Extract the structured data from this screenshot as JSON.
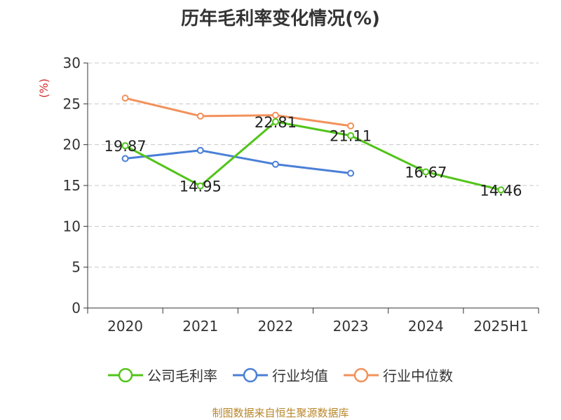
{
  "title": "历年毛利率变化情况(%)",
  "source": "制图数据来自恒生聚源数据库",
  "chart_data": {
    "type": "line",
    "title": "历年毛利率变化情况(%)",
    "ylabel": "(%)",
    "xlabel": "",
    "ylim": [
      0,
      30
    ],
    "yticks": [
      0,
      5,
      10,
      15,
      20,
      25,
      30
    ],
    "grid": true,
    "legend_position": "bottom",
    "categories": [
      "2020",
      "2021",
      "2022",
      "2023",
      "2024",
      "2025H1"
    ],
    "series": [
      {
        "name": "公司毛利率",
        "color": "#52c41a",
        "values": [
          19.87,
          14.95,
          22.81,
          21.11,
          16.67,
          14.46
        ],
        "labels": [
          "19.87",
          "14.95",
          "22.81",
          "21.11",
          "16.67",
          "14.46"
        ]
      },
      {
        "name": "行业均值",
        "color": "#4a7fd6",
        "values": [
          18.3,
          19.3,
          17.6,
          16.5,
          null,
          null
        ],
        "labels": []
      },
      {
        "name": "行业中位数",
        "color": "#f2915b",
        "values": [
          25.7,
          23.5,
          23.6,
          22.3,
          null,
          null
        ],
        "labels": []
      }
    ]
  }
}
